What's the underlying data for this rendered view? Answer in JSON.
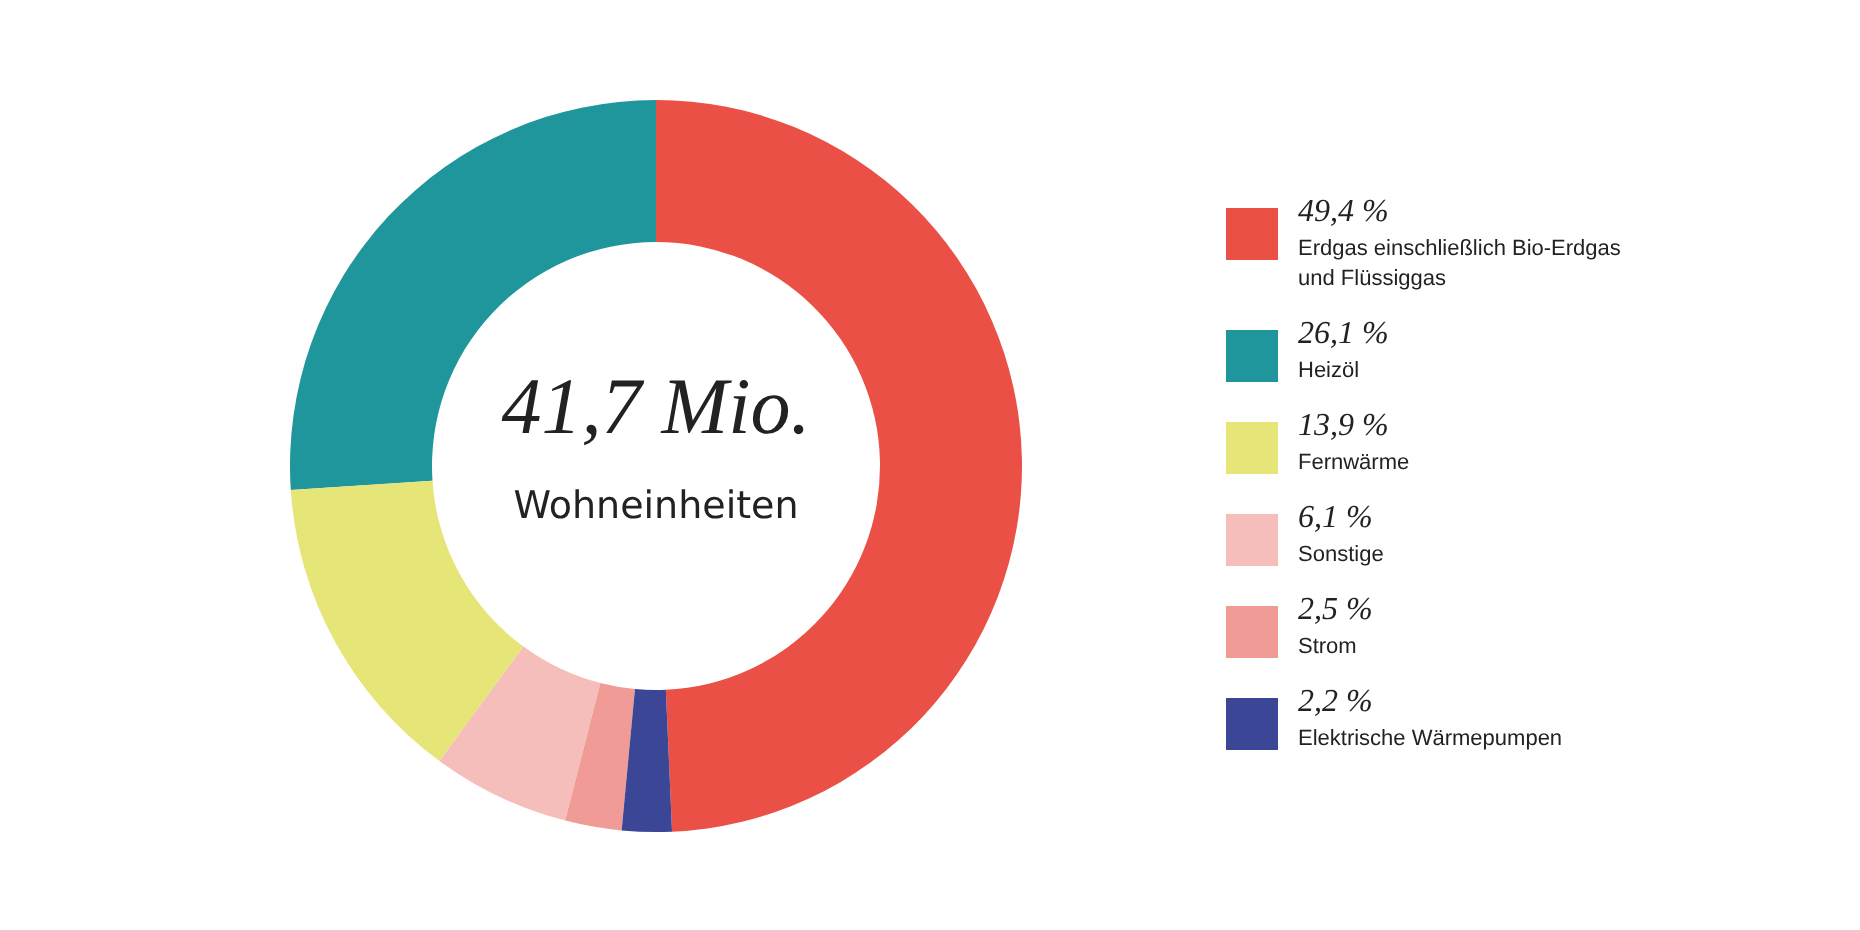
{
  "chart_data": {
    "type": "donut",
    "categories": [
      "Erdgas einschließlich Bio-Erdgas und Flüssiggas",
      "Heizöl",
      "Fernwärme",
      "Sonstige",
      "Strom",
      "Elektrische Wärmepumpen"
    ],
    "values": [
      49.4,
      26.1,
      13.9,
      6.1,
      2.5,
      2.2
    ],
    "value_labels": [
      "49,4 %",
      "26,1 %",
      "13,9 %",
      "6,1 %",
      "2,5 %",
      "2,2 %"
    ],
    "colors": [
      "#eb5046",
      "#1e969b",
      "#e6e678",
      "#f5bebb",
      "#f09b96",
      "#3c4696"
    ],
    "annotations": [
      "41,7 Mio.",
      "Wohneinheiten"
    ],
    "legend": "right"
  }
}
